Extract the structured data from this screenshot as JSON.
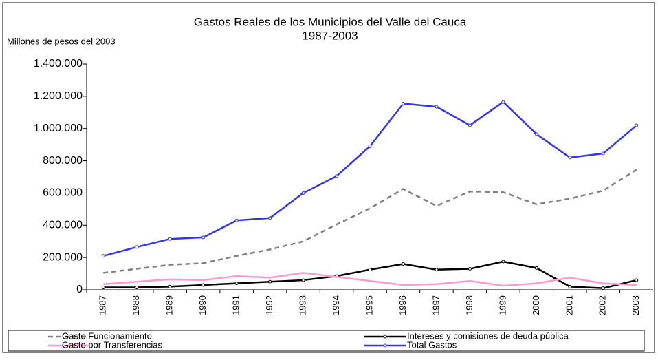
{
  "chart_data": {
    "type": "line",
    "title": "Gastos Reales de los Municipios del Valle del Cauca",
    "subtitle": "1987-2003",
    "y_label": "Millones de pesos del 2003",
    "categories": [
      "1987",
      "1988",
      "1989",
      "1990",
      "1991",
      "1992",
      "1993",
      "1994",
      "1995",
      "1996",
      "1997",
      "1998",
      "1999",
      "2000",
      "2001",
      "2002",
      "2003"
    ],
    "series": [
      {
        "name": "Gasto Funcionamiento",
        "color": "#808080",
        "dash": true,
        "values": [
          105000,
          130000,
          155000,
          165000,
          210000,
          250000,
          300000,
          405000,
          505000,
          625000,
          520000,
          610000,
          605000,
          530000,
          565000,
          615000,
          745000
        ]
      },
      {
        "name": "Intereses y comisiones de deuda pública",
        "color": "#000000",
        "markers": true,
        "values": [
          15000,
          15000,
          20000,
          30000,
          40000,
          50000,
          60000,
          85000,
          125000,
          160000,
          125000,
          130000,
          175000,
          135000,
          20000,
          10000,
          60000
        ]
      },
      {
        "name": "Gasto por Transferencias",
        "color": "#ff99cc",
        "values": [
          35000,
          50000,
          65000,
          60000,
          85000,
          75000,
          105000,
          80000,
          55000,
          30000,
          35000,
          55000,
          25000,
          40000,
          75000,
          40000,
          30000
        ]
      },
      {
        "name": "Total Gastos",
        "color": "#3333ff",
        "markers": true,
        "values": [
          210000,
          265000,
          315000,
          325000,
          430000,
          445000,
          600000,
          705000,
          890000,
          1155000,
          1135000,
          1020000,
          1165000,
          965000,
          820000,
          845000,
          1020000
        ]
      }
    ],
    "ylim": [
      0,
      1400000
    ],
    "yticks": [
      0,
      {
        "value": 200000,
        "label": "200.000"
      },
      {
        "value": 400000,
        "label": "400.000"
      },
      {
        "value": 600000,
        "label": "600.000"
      },
      {
        "value": 800000,
        "label": "800.000"
      },
      {
        "value": 1000000,
        "label": "1.000.000"
      },
      {
        "value": 1200000,
        "label": "1.200.000"
      },
      {
        "value": 1400000,
        "label": "1.400.000"
      }
    ],
    "grid": false,
    "legend": "bottom"
  }
}
